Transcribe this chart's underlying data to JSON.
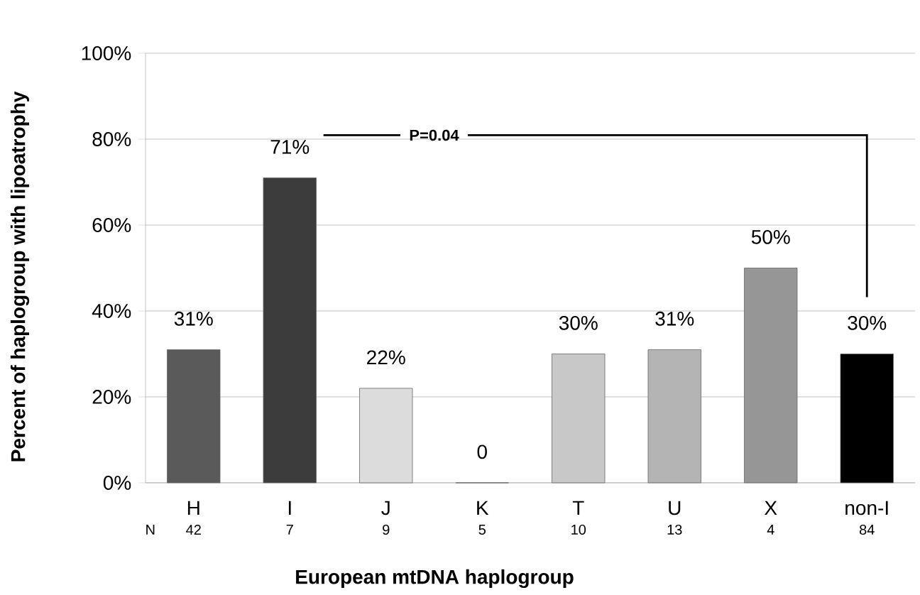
{
  "chart_data": {
    "type": "bar",
    "xlabel": "European mtDNA haplogroup",
    "ylabel": "Percent of haplogroup with lipoatrophy",
    "categories": [
      "H",
      "I",
      "J",
      "K",
      "T",
      "U",
      "X",
      "non-I"
    ],
    "values": [
      31,
      71,
      22,
      0,
      30,
      31,
      50,
      30
    ],
    "value_labels": [
      "31%",
      "71%",
      "22%",
      "0",
      "30%",
      "31%",
      "50%",
      "30%"
    ],
    "colors": [
      "#5a5a5a",
      "#3c3c3c",
      "#dcdcdc",
      "#ffffff",
      "#c8c8c8",
      "#b4b4b4",
      "#969696",
      "#000000"
    ],
    "ylim": [
      0,
      100
    ],
    "yticks": [
      {
        "value": 0,
        "label": "0%"
      },
      {
        "value": 20,
        "label": "20%"
      },
      {
        "value": 40,
        "label": "40%"
      },
      {
        "value": 60,
        "label": "60%"
      },
      {
        "value": 80,
        "label": "80%"
      },
      {
        "value": 100,
        "label": "100%"
      }
    ],
    "grid": "y",
    "annotations": [
      "N",
      "42",
      "7",
      "9",
      "5",
      "10",
      "13",
      "4",
      "84",
      "P=0.04"
    ]
  }
}
